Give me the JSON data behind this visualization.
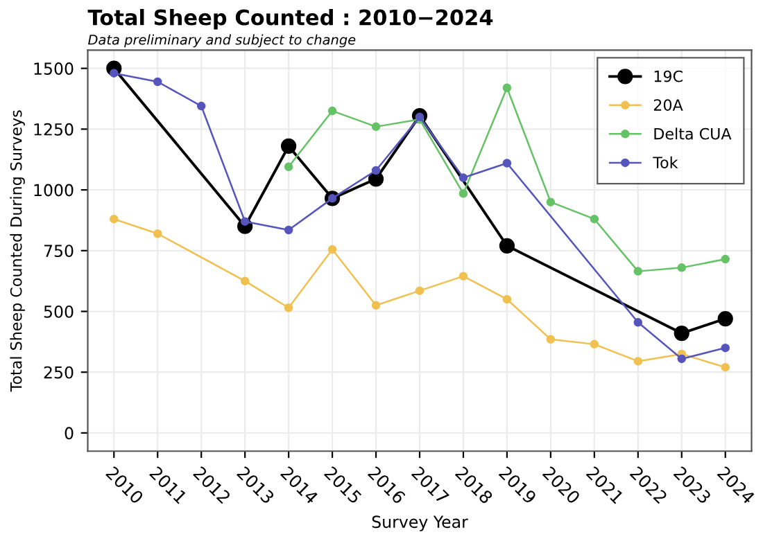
{
  "chart_data": {
    "type": "line",
    "title": "Total Sheep Counted : 2010−2024",
    "subtitle": "Data preliminary and subject to change",
    "xlabel": "Survey Year",
    "ylabel": "Total Sheep Counted During Surveys",
    "xlim": [
      2009.4,
      2024.6
    ],
    "xticks": [
      2010,
      2011,
      2012,
      2013,
      2014,
      2015,
      2016,
      2017,
      2018,
      2019,
      2020,
      2021,
      2022,
      2023,
      2024
    ],
    "ylim": [
      -75,
      1575
    ],
    "yticks": [
      0,
      250,
      500,
      750,
      1000,
      1250,
      1500
    ],
    "grid": true,
    "legend": "top right",
    "marker": "circle",
    "series": [
      {
        "name": "19C",
        "color": "#000000",
        "x": [
          2010,
          2013,
          2014,
          2015,
          2016,
          2017,
          2019,
          2023,
          2024
        ],
        "values": [
          1500,
          850,
          1180,
          965,
          1045,
          1305,
          770,
          410,
          470
        ]
      },
      {
        "name": "20A",
        "color": "#f0c050",
        "x": [
          2010,
          2011,
          2013,
          2014,
          2015,
          2016,
          2017,
          2018,
          2019,
          2020,
          2021,
          2022,
          2023,
          2024
        ],
        "values": [
          880,
          820,
          625,
          515,
          755,
          525,
          585,
          645,
          550,
          385,
          365,
          295,
          325,
          270
        ]
      },
      {
        "name": "Delta CUA",
        "color": "#66c266",
        "x": [
          2014,
          2015,
          2016,
          2017,
          2018,
          2019,
          2020,
          2021,
          2022,
          2023,
          2024
        ],
        "values": [
          1095,
          1325,
          1260,
          1290,
          985,
          1420,
          950,
          880,
          665,
          680,
          715
        ]
      },
      {
        "name": "Tok",
        "color": "#5555bb",
        "x": [
          2010,
          2011,
          2012,
          2013,
          2014,
          2015,
          2016,
          2017,
          2018,
          2019,
          2022,
          2023,
          2024
        ],
        "values": [
          1480,
          1445,
          1345,
          870,
          835,
          965,
          1080,
          1300,
          1050,
          1110,
          455,
          305,
          350
        ]
      }
    ]
  }
}
